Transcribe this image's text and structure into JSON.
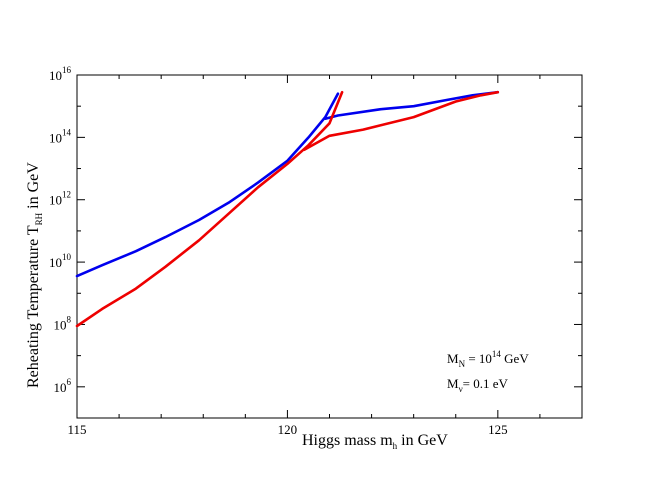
{
  "chart_data": {
    "type": "line",
    "title": "",
    "xlabel": {
      "main": "Higgs mass m",
      "sub": "h",
      "suffix": " in GeV"
    },
    "ylabel": {
      "main": "Reheating Temperature  T",
      "sub": "RH",
      "suffix": "  in GeV"
    },
    "xlim": [
      115,
      127
    ],
    "ylim_log10": [
      5,
      16
    ],
    "x_ticks": [
      {
        "value": 115,
        "label": "115"
      },
      {
        "value": 120,
        "label": "120"
      },
      {
        "value": 125,
        "label": "125"
      }
    ],
    "y_ticks": [
      {
        "exp": 6,
        "base": "10",
        "sup": "6"
      },
      {
        "exp": 8,
        "base": "10",
        "sup": "8"
      },
      {
        "exp": 10,
        "base": "10",
        "sup": "10"
      },
      {
        "exp": 12,
        "base": "10",
        "sup": "12"
      },
      {
        "exp": 14,
        "base": "10",
        "sup": "14"
      },
      {
        "exp": 16,
        "base": "10",
        "sup": "16"
      }
    ],
    "annotations": [
      {
        "main": "M",
        "sub": "N",
        "mid": " = 10",
        "sup": "14",
        "suffix": " GeV"
      },
      {
        "main": "M",
        "sub": "ν",
        "mid": "= 0.1  eV",
        "sup": "",
        "suffix": ""
      }
    ],
    "series": [
      {
        "name": "blue",
        "color": "#0000ee",
        "points": [
          [
            115.0,
            9.55
          ],
          [
            115.6,
            9.9
          ],
          [
            116.4,
            10.35
          ],
          [
            117.1,
            10.8
          ],
          [
            117.9,
            11.35
          ],
          [
            118.6,
            11.9
          ],
          [
            119.3,
            12.55
          ],
          [
            120.0,
            13.25
          ],
          [
            120.5,
            14.0
          ],
          [
            120.9,
            14.65
          ],
          [
            121.2,
            15.4
          ]
        ]
      },
      {
        "name": "blue",
        "color": "#0000ee",
        "points": [
          [
            120.9,
            14.6
          ],
          [
            121.2,
            14.7
          ],
          [
            122.2,
            14.9
          ],
          [
            123.0,
            15.0
          ],
          [
            123.8,
            15.2
          ],
          [
            124.4,
            15.35
          ],
          [
            125.0,
            15.45
          ]
        ]
      },
      {
        "name": "red",
        "color": "#ee0000",
        "points": [
          [
            115.0,
            7.95
          ],
          [
            115.6,
            8.5
          ],
          [
            116.4,
            9.15
          ],
          [
            117.1,
            9.85
          ],
          [
            117.9,
            10.7
          ],
          [
            118.6,
            11.55
          ],
          [
            119.3,
            12.4
          ],
          [
            120.0,
            13.15
          ],
          [
            120.5,
            13.75
          ],
          [
            121.0,
            14.45
          ],
          [
            121.3,
            15.45
          ]
        ]
      },
      {
        "name": "red",
        "color": "#ee0000",
        "points": [
          [
            120.4,
            13.6
          ],
          [
            121.0,
            14.05
          ],
          [
            121.8,
            14.25
          ],
          [
            123.0,
            14.65
          ],
          [
            124.0,
            15.15
          ],
          [
            124.6,
            15.35
          ],
          [
            125.0,
            15.45
          ]
        ]
      }
    ]
  }
}
